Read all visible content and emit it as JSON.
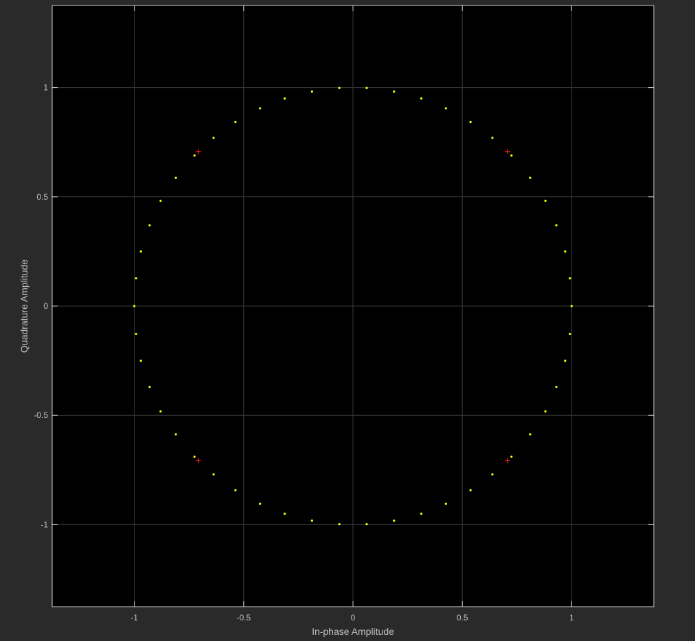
{
  "chart_data": {
    "type": "scatter",
    "title": "",
    "xlabel": "In-phase Amplitude",
    "ylabel": "Quadrature Amplitude",
    "xlim": [
      -1.3757,
      1.3757
    ],
    "ylim": [
      -1.3757,
      1.3757
    ],
    "xticks": [
      -1,
      -0.5,
      0,
      0.5,
      1
    ],
    "xtick_labels": [
      "-1",
      "-0.5",
      "0",
      "0.5",
      "1"
    ],
    "yticks": [
      -1,
      -0.5,
      0,
      0.5,
      1
    ],
    "ytick_labels": [
      "-1",
      "-0.5",
      "0",
      "0.5",
      "1"
    ],
    "grid": true,
    "background": "#000000",
    "figure_background": "#2a2a2a",
    "series": [
      {
        "marker": "dot",
        "color": "#ffff00",
        "points": [
          [
            0.0625,
            0.998
          ],
          [
            0.1875,
            0.982
          ],
          [
            0.3125,
            0.95
          ],
          [
            0.425,
            0.905
          ],
          [
            0.5375,
            0.843
          ],
          [
            0.6375,
            0.77
          ],
          [
            0.725,
            0.689
          ],
          [
            0.81,
            0.587
          ],
          [
            0.88,
            0.482
          ],
          [
            0.93,
            0.37
          ],
          [
            0.97,
            0.25
          ],
          [
            0.992,
            0.127
          ],
          [
            1.0,
            0.0
          ],
          [
            0.992,
            -0.127
          ],
          [
            0.97,
            -0.25
          ],
          [
            0.93,
            -0.37
          ],
          [
            0.88,
            -0.482
          ],
          [
            0.81,
            -0.587
          ],
          [
            0.725,
            -0.689
          ],
          [
            0.6375,
            -0.77
          ],
          [
            0.5375,
            -0.843
          ],
          [
            0.425,
            -0.905
          ],
          [
            0.3125,
            -0.95
          ],
          [
            0.1875,
            -0.982
          ],
          [
            0.0625,
            -0.998
          ],
          [
            -0.0625,
            -0.998
          ],
          [
            -0.1875,
            -0.982
          ],
          [
            -0.3125,
            -0.95
          ],
          [
            -0.425,
            -0.905
          ],
          [
            -0.5375,
            -0.843
          ],
          [
            -0.6375,
            -0.77
          ],
          [
            -0.725,
            -0.689
          ],
          [
            -0.81,
            -0.587
          ],
          [
            -0.88,
            -0.482
          ],
          [
            -0.93,
            -0.37
          ],
          [
            -0.97,
            -0.25
          ],
          [
            -0.992,
            -0.127
          ],
          [
            -1.0,
            0.0
          ],
          [
            -0.992,
            0.127
          ],
          [
            -0.97,
            0.25
          ],
          [
            -0.93,
            0.37
          ],
          [
            -0.88,
            0.482
          ],
          [
            -0.81,
            0.587
          ],
          [
            -0.725,
            0.689
          ],
          [
            -0.6375,
            0.77
          ],
          [
            -0.5375,
            0.843
          ],
          [
            -0.425,
            0.905
          ],
          [
            -0.3125,
            0.95
          ],
          [
            -0.1875,
            0.982
          ],
          [
            -0.0625,
            0.998
          ]
        ]
      },
      {
        "marker": "plus",
        "color": "#ff2020",
        "points": [
          [
            0.7071,
            0.7071
          ],
          [
            0.7071,
            -0.7071
          ],
          [
            -0.7071,
            -0.7071
          ],
          [
            -0.7071,
            0.7071
          ]
        ]
      }
    ]
  }
}
